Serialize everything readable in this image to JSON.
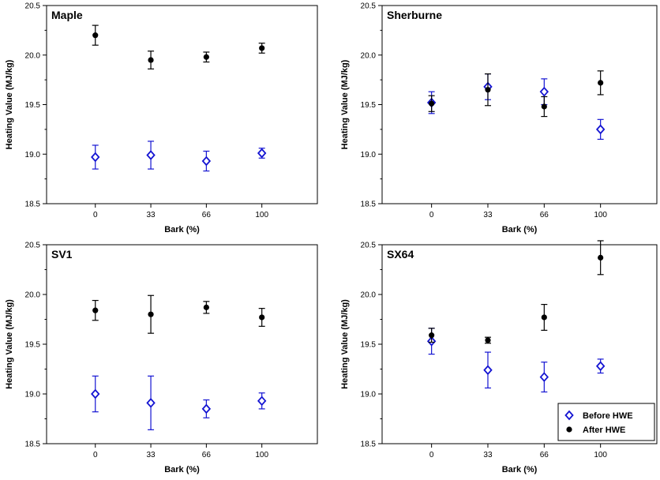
{
  "colors": {
    "before": "#1414d2",
    "after": "#000000",
    "axis": "#000000"
  },
  "legend": {
    "position": "bottom-right of SX64 panel",
    "entries": [
      {
        "name": "Before HWE",
        "marker": "open-diamond",
        "color": "#1414d2"
      },
      {
        "name": "After HWE",
        "marker": "filled-circle",
        "color": "#000000"
      }
    ]
  },
  "chart_data": [
    {
      "type": "scatter",
      "title": "Maple",
      "xlabel": "Bark (%)",
      "ylabel": "Heating Value (MJ/kg)",
      "categories": [
        "0",
        "33",
        "66",
        "100"
      ],
      "ylim": [
        18.5,
        20.5
      ],
      "yticks": [
        "18.5",
        "19.0",
        "19.5",
        "20.0",
        "20.5"
      ],
      "series": [
        {
          "name": "Before HWE",
          "values": [
            18.97,
            18.99,
            18.93,
            19.01
          ],
          "errors": [
            0.12,
            0.14,
            0.1,
            0.05
          ]
        },
        {
          "name": "After HWE",
          "values": [
            20.2,
            19.95,
            19.98,
            20.07
          ],
          "errors": [
            0.1,
            0.09,
            0.05,
            0.05
          ]
        }
      ]
    },
    {
      "type": "scatter",
      "title": "Sherburne",
      "xlabel": "Bark (%)",
      "ylabel": "Heating Value (MJ/kg)",
      "categories": [
        "0",
        "33",
        "66",
        "100"
      ],
      "ylim": [
        18.5,
        20.5
      ],
      "yticks": [
        "18.5",
        "19.0",
        "19.5",
        "20.0",
        "20.5"
      ],
      "series": [
        {
          "name": "Before HWE",
          "values": [
            19.52,
            19.68,
            19.63,
            19.25
          ],
          "errors": [
            0.11,
            0.13,
            0.13,
            0.1
          ]
        },
        {
          "name": "After HWE",
          "values": [
            19.51,
            19.65,
            19.48,
            19.72
          ],
          "errors": [
            0.08,
            0.16,
            0.1,
            0.12
          ]
        }
      ]
    },
    {
      "type": "scatter",
      "title": "SV1",
      "xlabel": "Bark (%)",
      "ylabel": "Heating Value (MJ/kg)",
      "categories": [
        "0",
        "33",
        "66",
        "100"
      ],
      "ylim": [
        18.5,
        20.5
      ],
      "yticks": [
        "18.5",
        "19.0",
        "19.5",
        "20.0",
        "20.5"
      ],
      "series": [
        {
          "name": "Before HWE",
          "values": [
            19.0,
            18.91,
            18.85,
            18.93
          ],
          "errors": [
            0.18,
            0.27,
            0.09,
            0.08
          ]
        },
        {
          "name": "After HWE",
          "values": [
            19.84,
            19.8,
            19.87,
            19.77
          ],
          "errors": [
            0.1,
            0.19,
            0.06,
            0.09
          ]
        }
      ]
    },
    {
      "type": "scatter",
      "title": "SX64",
      "xlabel": "Bark (%)",
      "ylabel": "Heating Value (MJ/kg)",
      "categories": [
        "0",
        "33",
        "66",
        "100"
      ],
      "ylim": [
        18.5,
        20.5
      ],
      "yticks": [
        "18.5",
        "19.0",
        "19.5",
        "20.0",
        "20.5"
      ],
      "series": [
        {
          "name": "Before HWE",
          "values": [
            19.53,
            19.24,
            19.17,
            19.28
          ],
          "errors": [
            0.13,
            0.18,
            0.15,
            0.07
          ]
        },
        {
          "name": "After HWE",
          "values": [
            19.59,
            19.54,
            19.77,
            20.37
          ],
          "errors": [
            0.07,
            0.03,
            0.13,
            0.17
          ]
        }
      ]
    }
  ]
}
